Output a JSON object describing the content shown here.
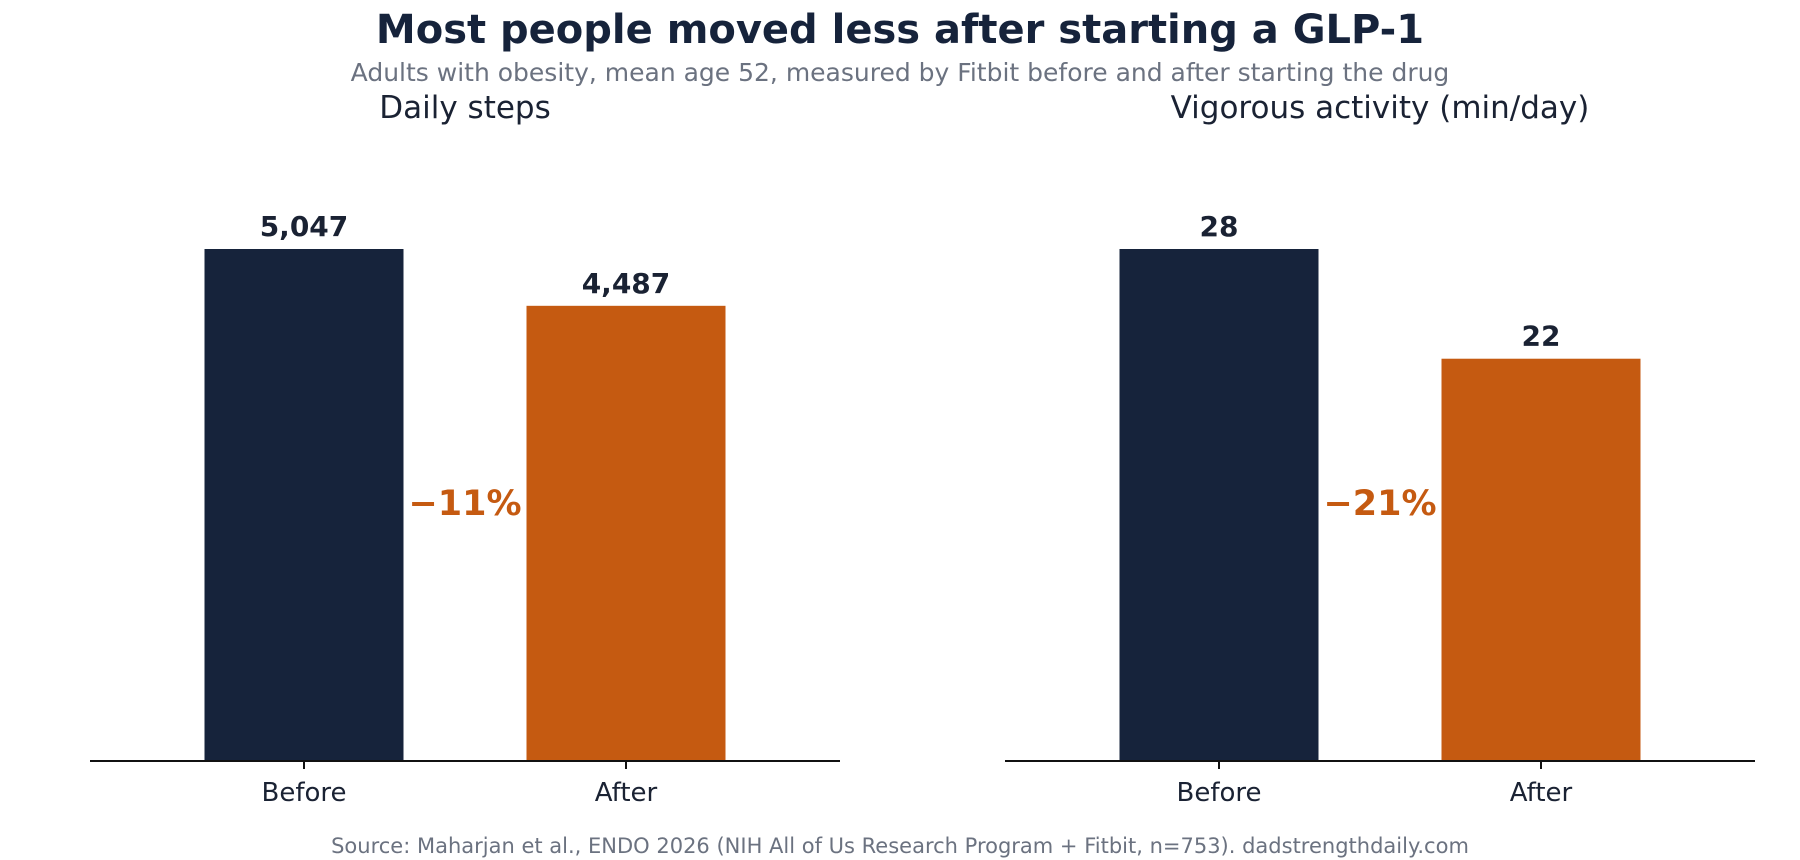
{
  "title": "Most people moved less after starting a GLP-1",
  "subtitle": "Adults with obesity, mean age 52, measured by Fitbit before and after starting the drug",
  "source": "Source: Maharjan et al., ENDO 2026 (NIH All of Us Research Program + Fitbit, n=753).   dadstrengthdaily.com",
  "colors": {
    "before": "#16233b",
    "after": "#c55a11",
    "change": "#c55a11",
    "axis": "#111111"
  },
  "chart_data": [
    {
      "type": "bar",
      "title": "Daily steps",
      "categories": [
        "Before",
        "After"
      ],
      "values": [
        5047,
        4487
      ],
      "value_labels": [
        "5,047",
        "4,487"
      ],
      "change_label": "−11%",
      "xlabel": "",
      "ylabel": "",
      "ylim": [
        0,
        5047
      ],
      "grid": false,
      "legend": "none"
    },
    {
      "type": "bar",
      "title": "Vigorous activity (min/day)",
      "categories": [
        "Before",
        "After"
      ],
      "values": [
        28,
        22
      ],
      "value_labels": [
        "28",
        "22"
      ],
      "change_label": "−21%",
      "xlabel": "",
      "ylabel": "",
      "ylim": [
        0,
        28
      ],
      "grid": false,
      "legend": "none"
    }
  ]
}
